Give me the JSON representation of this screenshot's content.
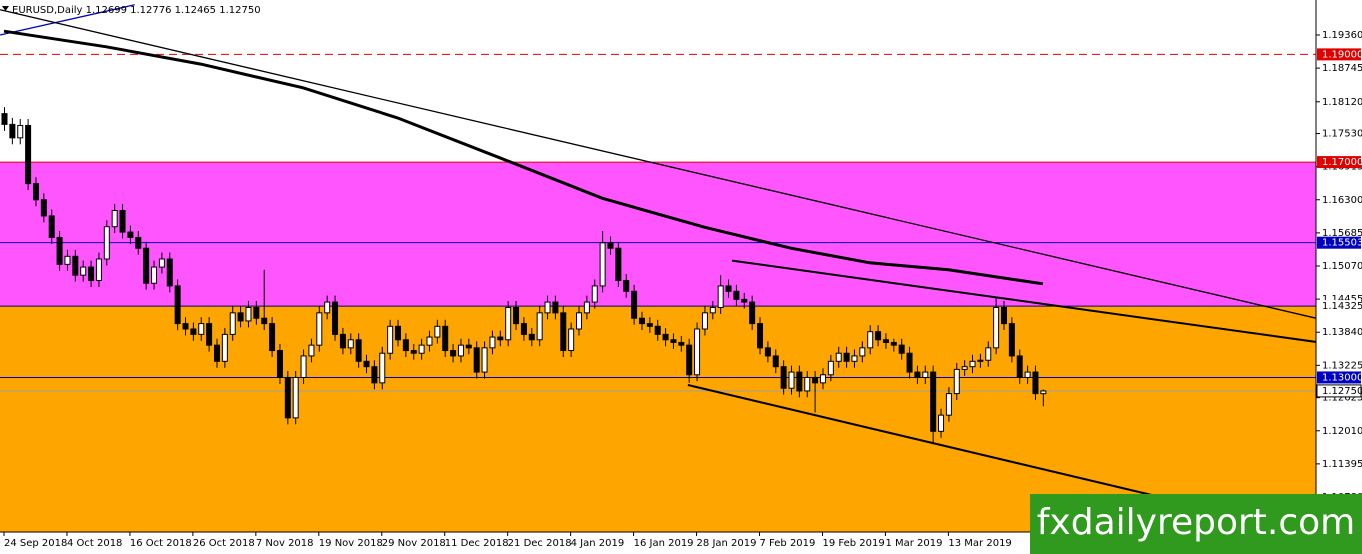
{
  "chart_data": {
    "type": "candlestick",
    "header": "EURUSD,Daily  1.12699 1.12776 1.12465 1.12750",
    "watermark": "fxdailyreport.com",
    "ylim": [
      1.1013,
      1.2001
    ],
    "yticks": [
      {
        "value": 1.1936,
        "label": "1.19360"
      },
      {
        "value": 1.18745,
        "label": "1.18745"
      },
      {
        "value": 1.1812,
        "label": "1.18120"
      },
      {
        "value": 1.1753,
        "label": "1.17530"
      },
      {
        "value": 1.16915,
        "label": "1.16915"
      },
      {
        "value": 1.163,
        "label": "1.16300"
      },
      {
        "value": 1.15685,
        "label": "1.15685"
      },
      {
        "value": 1.1507,
        "label": "1.15070"
      },
      {
        "value": 1.14455,
        "label": "1.14455"
      },
      {
        "value": 1.1384,
        "label": "1.13840"
      },
      {
        "value": 1.13225,
        "label": "1.13225"
      },
      {
        "value": 1.12625,
        "label": "1.12625"
      },
      {
        "value": 1.1201,
        "label": "1.12010"
      },
      {
        "value": 1.11395,
        "label": "1.11395"
      },
      {
        "value": 1.1078,
        "label": "1.10780"
      }
    ],
    "categories": [
      "24 Sep 2018",
      null,
      null,
      null,
      null,
      null,
      null,
      null,
      "4 Oct 2018",
      null,
      null,
      null,
      null,
      null,
      null,
      null,
      "16 Oct 2018",
      null,
      null,
      null,
      null,
      null,
      null,
      null,
      "26 Oct 2018",
      null,
      null,
      null,
      null,
      null,
      null,
      null,
      "7 Nov 2018",
      null,
      null,
      null,
      null,
      null,
      null,
      null,
      "19 Nov 2018",
      null,
      null,
      null,
      null,
      null,
      null,
      null,
      "29 Nov 2018",
      null,
      null,
      null,
      null,
      null,
      null,
      null,
      "11 Dec 2018",
      null,
      null,
      null,
      null,
      null,
      null,
      null,
      "21 Dec 2018",
      null,
      null,
      null,
      null,
      null,
      null,
      null,
      "4 Jan 2019",
      null,
      null,
      null,
      null,
      null,
      null,
      null,
      "16 Jan 2019",
      null,
      null,
      null,
      null,
      null,
      null,
      null,
      "28 Jan 2019",
      null,
      null,
      null,
      null,
      null,
      null,
      null,
      "7 Feb 2019",
      null,
      null,
      null,
      null,
      null,
      null,
      null,
      "19 Feb 2019",
      null,
      null,
      null,
      null,
      null,
      null,
      null,
      "1 Mar 2019",
      null,
      null,
      null,
      null,
      null,
      null,
      null,
      "13 Mar 2019",
      null,
      null,
      null,
      null,
      null,
      null,
      null,
      null,
      null,
      null,
      null,
      null
    ],
    "open": [
      1.179,
      1.177,
      1.1745,
      1.1768,
      1.166,
      1.163,
      1.16,
      1.156,
      1.151,
      1.1525,
      1.149,
      1.1505,
      1.148,
      1.152,
      1.158,
      1.161,
      1.157,
      1.156,
      1.154,
      1.1475,
      1.1505,
      1.152,
      1.147,
      1.14,
      1.139,
      1.138,
      1.14,
      1.136,
      1.133,
      1.138,
      1.142,
      1.1405,
      1.143,
      1.141,
      1.14,
      1.135,
      1.13,
      1.1225,
      1.13,
      1.134,
      1.136,
      1.142,
      1.144,
      1.138,
      1.1355,
      1.137,
      1.133,
      1.132,
      1.129,
      1.1345,
      1.1395,
      1.137,
      1.135,
      1.1345,
      1.136,
      1.1375,
      1.1395,
      1.135,
      1.134,
      1.136,
      1.1355,
      1.131,
      1.1355,
      1.1375,
      1.137,
      1.143,
      1.14,
      1.138,
      1.137,
      1.142,
      1.144,
      1.142,
      1.135,
      1.139,
      1.142,
      1.144,
      1.147,
      1.155,
      1.154,
      1.148,
      1.146,
      1.141,
      1.14,
      1.1395,
      1.138,
      1.137,
      1.1365,
      1.136,
      1.1305,
      1.139,
      1.142,
      1.143,
      1.147,
      1.146,
      1.1445,
      1.144,
      1.14,
      1.1355,
      1.134,
      1.132,
      1.128,
      1.131,
      1.1275,
      1.13,
      1.129,
      1.1305,
      1.133,
      1.1345,
      1.133,
      1.134,
      1.1355,
      1.1385,
      1.137,
      1.1365,
      1.136,
      1.1345,
      1.131,
      1.13,
      1.131,
      1.12,
      1.123,
      1.127,
      1.1315,
      1.132,
      1.133,
      1.1332,
      1.1355,
      1.143,
      1.14,
      1.134,
      1.13,
      1.131,
      1.12699
    ],
    "high": [
      1.1802,
      1.1782,
      1.178,
      1.178,
      1.1672,
      1.1642,
      1.1612,
      1.1572,
      1.1537,
      1.1537,
      1.1517,
      1.1517,
      1.1532,
      1.1592,
      1.1622,
      1.1622,
      1.1582,
      1.1572,
      1.1552,
      1.1517,
      1.1532,
      1.1532,
      1.1482,
      1.1412,
      1.1402,
      1.1412,
      1.1412,
      1.1372,
      1.1392,
      1.1432,
      1.1432,
      1.1442,
      1.1442,
      1.15,
      1.1412,
      1.1362,
      1.1312,
      1.1312,
      1.1352,
      1.1372,
      1.1432,
      1.1452,
      1.1452,
      1.1392,
      1.1382,
      1.1382,
      1.1342,
      1.1332,
      1.1357,
      1.1407,
      1.1407,
      1.1382,
      1.1362,
      1.1372,
      1.1387,
      1.1407,
      1.1407,
      1.1362,
      1.1372,
      1.1372,
      1.1367,
      1.1367,
      1.1387,
      1.1387,
      1.1442,
      1.1442,
      1.1412,
      1.1392,
      1.1432,
      1.1452,
      1.1452,
      1.1432,
      1.1402,
      1.1432,
      1.1452,
      1.1482,
      1.1572,
      1.1562,
      1.1552,
      1.1492,
      1.1472,
      1.1422,
      1.1412,
      1.1407,
      1.1392,
      1.1382,
      1.1377,
      1.1372,
      1.1402,
      1.1432,
      1.1442,
      1.149,
      1.1482,
      1.1472,
      1.1457,
      1.1452,
      1.1412,
      1.1367,
      1.1352,
      1.1332,
      1.1322,
      1.1322,
      1.1312,
      1.1312,
      1.1317,
      1.1342,
      1.1357,
      1.1357,
      1.1352,
      1.1367,
      1.1397,
      1.1397,
      1.1382,
      1.1372,
      1.1372,
      1.1357,
      1.1322,
      1.1322,
      1.1322,
      1.1242,
      1.1282,
      1.1327,
      1.1332,
      1.1342,
      1.1344,
      1.1367,
      1.1448,
      1.1442,
      1.1412,
      1.1352,
      1.1322,
      1.1322,
      1.12776
    ],
    "low": [
      1.1758,
      1.1733,
      1.1733,
      1.1648,
      1.1618,
      1.1588,
      1.1548,
      1.1498,
      1.1498,
      1.1478,
      1.1478,
      1.1468,
      1.1468,
      1.1508,
      1.1568,
      1.1558,
      1.1548,
      1.1528,
      1.1463,
      1.1463,
      1.1493,
      1.1458,
      1.1388,
      1.1378,
      1.1368,
      1.1368,
      1.1348,
      1.1318,
      1.1318,
      1.1368,
      1.1393,
      1.1393,
      1.1398,
      1.1388,
      1.1338,
      1.1288,
      1.1213,
      1.1213,
      1.1288,
      1.1328,
      1.1348,
      1.1408,
      1.1368,
      1.1343,
      1.1343,
      1.1318,
      1.1308,
      1.1278,
      1.1278,
      1.1333,
      1.1358,
      1.1338,
      1.1333,
      1.1333,
      1.1348,
      1.1363,
      1.1338,
      1.1328,
      1.1328,
      1.1343,
      1.1298,
      1.1298,
      1.1343,
      1.1358,
      1.1358,
      1.1388,
      1.1368,
      1.1358,
      1.1358,
      1.1408,
      1.1408,
      1.1338,
      1.1338,
      1.1378,
      1.1408,
      1.1428,
      1.1458,
      1.1528,
      1.1468,
      1.1448,
      1.1398,
      1.1388,
      1.1383,
      1.1368,
      1.1358,
      1.1353,
      1.1348,
      1.129,
      1.1293,
      1.1378,
      1.1408,
      1.1418,
      1.1448,
      1.1433,
      1.1428,
      1.1388,
      1.1343,
      1.1328,
      1.1308,
      1.1268,
      1.1268,
      1.1263,
      1.1263,
      1.1235,
      1.1278,
      1.1293,
      1.1318,
      1.1318,
      1.1318,
      1.1328,
      1.1343,
      1.1358,
      1.1353,
      1.1348,
      1.1333,
      1.1298,
      1.1288,
      1.1288,
      1.1176,
      1.1188,
      1.1218,
      1.1258,
      1.1303,
      1.1308,
      1.1318,
      1.132,
      1.1343,
      1.1388,
      1.1328,
      1.1288,
      1.1288,
      1.1258,
      1.12465
    ],
    "close": [
      1.177,
      1.1745,
      1.1768,
      1.166,
      1.163,
      1.16,
      1.156,
      1.151,
      1.1525,
      1.149,
      1.1505,
      1.148,
      1.152,
      1.158,
      1.161,
      1.157,
      1.156,
      1.154,
      1.1475,
      1.1505,
      1.152,
      1.147,
      1.14,
      1.139,
      1.138,
      1.14,
      1.136,
      1.133,
      1.138,
      1.142,
      1.1405,
      1.143,
      1.141,
      1.14,
      1.135,
      1.13,
      1.1225,
      1.13,
      1.134,
      1.136,
      1.142,
      1.144,
      1.138,
      1.1355,
      1.137,
      1.133,
      1.132,
      1.129,
      1.1345,
      1.1395,
      1.137,
      1.135,
      1.1345,
      1.136,
      1.1375,
      1.1395,
      1.135,
      1.134,
      1.136,
      1.1355,
      1.131,
      1.1355,
      1.1375,
      1.137,
      1.143,
      1.14,
      1.138,
      1.137,
      1.142,
      1.144,
      1.142,
      1.135,
      1.139,
      1.142,
      1.144,
      1.147,
      1.155,
      1.154,
      1.148,
      1.146,
      1.141,
      1.14,
      1.1395,
      1.138,
      1.137,
      1.1365,
      1.136,
      1.1305,
      1.139,
      1.142,
      1.143,
      1.147,
      1.146,
      1.1445,
      1.144,
      1.14,
      1.1355,
      1.134,
      1.132,
      1.128,
      1.131,
      1.1275,
      1.13,
      1.129,
      1.1305,
      1.133,
      1.1345,
      1.133,
      1.134,
      1.1355,
      1.1385,
      1.137,
      1.1365,
      1.136,
      1.1345,
      1.131,
      1.13,
      1.131,
      1.12,
      1.123,
      1.127,
      1.1315,
      1.132,
      1.133,
      1.1332,
      1.1355,
      1.143,
      1.14,
      1.134,
      1.13,
      1.131,
      1.127,
      1.1275
    ],
    "up_color": "#ffffff",
    "down_color": "#000000",
    "zones": [
      {
        "top": 1.17,
        "bottom": 1.14325,
        "color": "#ff55ff"
      },
      {
        "top": 1.14325,
        "color": "#ffa500"
      }
    ],
    "levels": [
      {
        "value": 1.19,
        "label": "1.19000",
        "color": "#e00000",
        "dashed": true
      },
      {
        "value": 1.17,
        "label": "1.17000",
        "color": "#e00000",
        "dashed": false
      },
      {
        "value": 1.15503,
        "label": "1.15503",
        "color": "#0000c0",
        "dashed": false
      },
      {
        "value": 1.14325,
        "label": "1.14325",
        "color": "#000080",
        "dashed": false
      },
      {
        "value": 1.13,
        "label": "1.13000",
        "color": "#0000c0",
        "dashed": false
      },
      {
        "value": 1.1275,
        "label": "1.12750",
        "color": "#a0a0a0",
        "dashed": false
      }
    ],
    "moving_average": {
      "color": "#000000",
      "x": [
        0,
        13,
        25,
        38,
        50,
        63,
        76,
        89,
        100,
        110,
        120,
        132
      ],
      "values": [
        1.1943,
        1.1914,
        1.1882,
        1.1838,
        1.1782,
        1.1708,
        1.1633,
        1.1579,
        1.154,
        1.1513,
        1.15,
        1.1474
      ]
    },
    "trendlines": [
      {
        "color": "#0000c0",
        "x": [
          -0.5,
          16.6
        ],
        "values": [
          1.1936,
          1.1992
        ]
      },
      {
        "color": "#000000",
        "x": [
          -0.5,
          166.7
        ],
        "values": [
          1.1983,
          1.141
        ]
      },
      {
        "color": "#000000",
        "x": [
          92.5,
          172.6
        ],
        "values": [
          1.1517,
          1.1354
        ]
      },
      {
        "color": "#000000",
        "x": [
          86.9,
          146.9
        ],
        "values": [
          1.1286,
          1.1078
        ]
      }
    ]
  }
}
